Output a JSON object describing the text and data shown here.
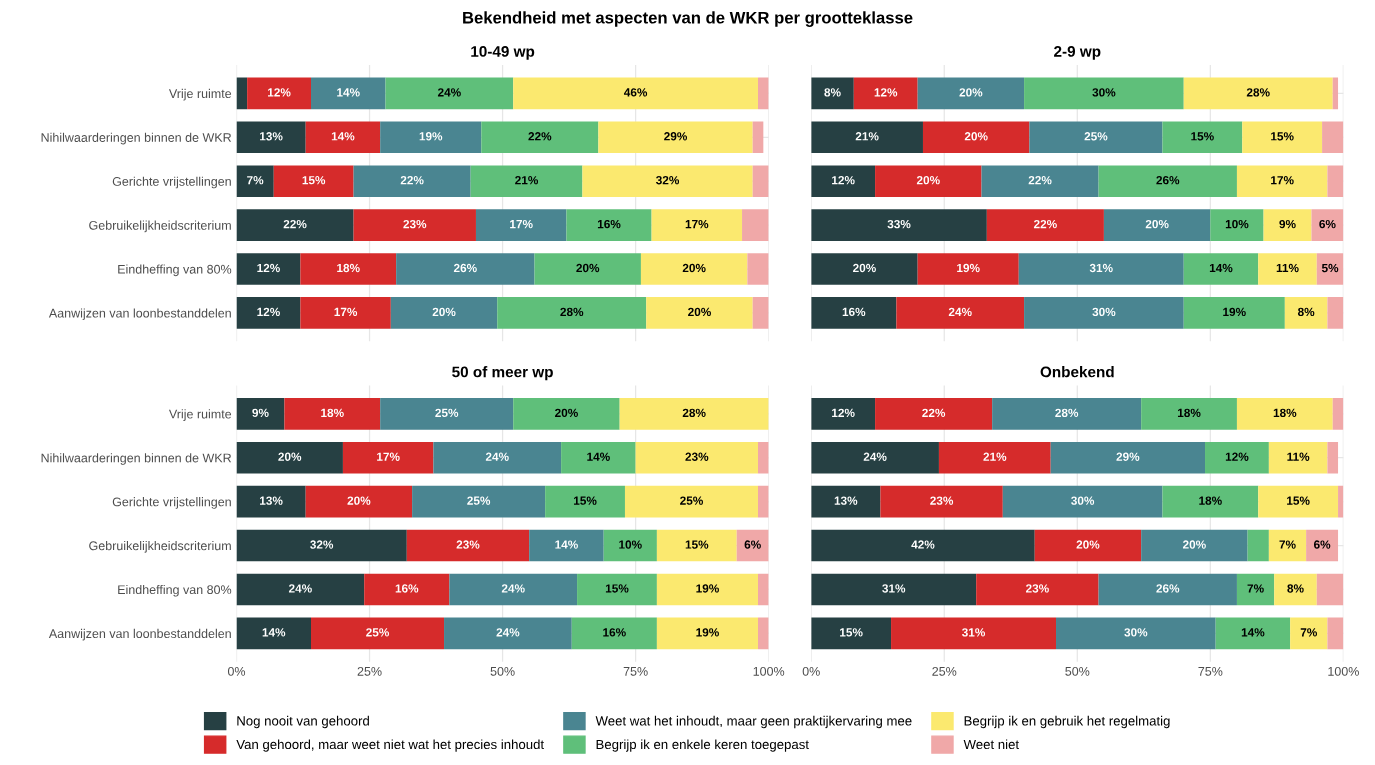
{
  "chart_data": [
    {
      "type": "bar",
      "orientation": "horizontal",
      "stacked": true,
      "title": "10-49 wp",
      "annotations": [
        "Bekendheid met aspecten van de WKR per grootteklasse"
      ],
      "tick_labels": "y",
      "grid": true,
      "legend": "bottom",
      "xlim": [
        0,
        100
      ],
      "xticks": [
        {
          "value": 0,
          "label": null
        },
        {
          "value": 25,
          "label": null
        },
        {
          "value": 50,
          "label": null
        },
        {
          "value": 75,
          "label": null
        },
        {
          "value": 100,
          "label": null
        }
      ],
      "categories": [
        "Vrije ruimte",
        "Nihilwaarderingen binnen de WKR",
        "Gerichte vrijstellingen",
        "Gebruikelijkheidscriterium",
        "Eindheffing van 80%",
        "Aanwijzen van loonbestanddelen"
      ],
      "series": [
        {
          "name": "Nog nooit van gehoord",
          "color": "#264043",
          "values": [
            2,
            13,
            7,
            22,
            12,
            12
          ],
          "value_labels": [
            null,
            "13%",
            "7%",
            "22%",
            "12%",
            "12%"
          ]
        },
        {
          "name": "Van gehoord, maar weet niet wat het precies inhoudt",
          "color": "#d62b2b",
          "values": [
            12,
            14,
            15,
            23,
            18,
            17
          ],
          "value_labels": [
            "12%",
            "14%",
            "15%",
            "23%",
            "18%",
            "17%"
          ]
        },
        {
          "name": "Weet wat het inhoudt, maar geen praktijkervaring mee",
          "color": "#4a8591",
          "values": [
            14,
            19,
            22,
            17,
            26,
            20
          ],
          "value_labels": [
            "14%",
            "19%",
            "22%",
            "17%",
            "26%",
            "20%"
          ]
        },
        {
          "name": "Begrijp ik en enkele keren toegepast",
          "color": "#5fbf7a",
          "values": [
            24,
            22,
            21,
            16,
            20,
            28
          ],
          "value_labels": [
            "24%",
            "22%",
            "21%",
            "16%",
            "20%",
            "28%"
          ]
        },
        {
          "name": "Begrijp ik en gebruik het regelmatig",
          "color": "#fbe96f",
          "values": [
            46,
            29,
            32,
            17,
            20,
            20
          ],
          "value_labels": [
            "46%",
            "29%",
            "32%",
            "17%",
            "20%",
            "20%"
          ]
        },
        {
          "name": "Weet niet",
          "color": "#f0a8a8",
          "values": [
            2,
            2,
            3,
            5,
            4,
            3
          ],
          "value_labels": [
            null,
            null,
            null,
            null,
            null,
            null
          ]
        }
      ]
    },
    {
      "type": "bar",
      "orientation": "horizontal",
      "stacked": true,
      "title": "2-9 wp",
      "tick_labels": false,
      "grid": true,
      "xlim": [
        0,
        100
      ],
      "xticks": [
        {
          "value": 0,
          "label": null
        },
        {
          "value": 25,
          "label": null
        },
        {
          "value": 50,
          "label": null
        },
        {
          "value": 75,
          "label": null
        },
        {
          "value": 100,
          "label": null
        }
      ],
      "categories": [
        null,
        null,
        null,
        null,
        null,
        null
      ],
      "series": [
        {
          "color": "#264043",
          "values": [
            8,
            21,
            12,
            33,
            20,
            16
          ],
          "value_labels": [
            "8%",
            "21%",
            "12%",
            "33%",
            "20%",
            "16%"
          ]
        },
        {
          "color": "#d62b2b",
          "values": [
            12,
            20,
            20,
            22,
            19,
            24
          ],
          "value_labels": [
            "12%",
            "20%",
            "20%",
            "22%",
            "19%",
            "24%"
          ]
        },
        {
          "color": "#4a8591",
          "values": [
            20,
            25,
            22,
            20,
            31,
            30
          ],
          "value_labels": [
            "20%",
            "25%",
            "22%",
            "20%",
            "31%",
            "30%"
          ]
        },
        {
          "color": "#5fbf7a",
          "values": [
            30,
            15,
            26,
            10,
            14,
            19
          ],
          "value_labels": [
            "30%",
            "15%",
            "26%",
            "10%",
            "14%",
            "19%"
          ]
        },
        {
          "color": "#fbe96f",
          "values": [
            28,
            15,
            17,
            9,
            11,
            8
          ],
          "value_labels": [
            "28%",
            "15%",
            "17%",
            "9%",
            "11%",
            "8%"
          ]
        },
        {
          "color": "#f0a8a8",
          "values": [
            1,
            4,
            3,
            6,
            5,
            3
          ],
          "value_labels": [
            null,
            null,
            null,
            "6%",
            "5%",
            null
          ]
        }
      ]
    },
    {
      "type": "bar",
      "orientation": "horizontal",
      "stacked": true,
      "title": "50 of meer wp",
      "grid": true,
      "xlim": [
        0,
        100
      ],
      "xticks": [
        {
          "value": 0,
          "label": "0%"
        },
        {
          "value": 25,
          "label": "25%"
        },
        {
          "value": 50,
          "label": "50%"
        },
        {
          "value": 75,
          "label": "75%"
        },
        {
          "value": 100,
          "label": "100%"
        }
      ],
      "categories": [
        "Vrije ruimte",
        "Nihilwaarderingen binnen de WKR",
        "Gerichte vrijstellingen",
        "Gebruikelijkheidscriterium",
        "Eindheffing van 80%",
        "Aanwijzen van loonbestanddelen"
      ],
      "series": [
        {
          "color": "#264043",
          "values": [
            9,
            20,
            13,
            32,
            24,
            14
          ],
          "value_labels": [
            "9%",
            "20%",
            "13%",
            "32%",
            "24%",
            "14%"
          ]
        },
        {
          "color": "#d62b2b",
          "values": [
            18,
            17,
            20,
            23,
            16,
            25
          ],
          "value_labels": [
            "18%",
            "17%",
            "20%",
            "23%",
            "16%",
            "25%"
          ]
        },
        {
          "color": "#4a8591",
          "values": [
            25,
            24,
            25,
            14,
            24,
            24
          ],
          "value_labels": [
            "25%",
            "24%",
            "25%",
            "14%",
            "24%",
            "24%"
          ]
        },
        {
          "color": "#5fbf7a",
          "values": [
            20,
            14,
            15,
            10,
            15,
            16
          ],
          "value_labels": [
            "20%",
            "14%",
            "15%",
            "10%",
            "15%",
            "16%"
          ]
        },
        {
          "color": "#fbe96f",
          "values": [
            28,
            23,
            25,
            15,
            19,
            19
          ],
          "value_labels": [
            "28%",
            "23%",
            "25%",
            "15%",
            "19%",
            "19%"
          ]
        },
        {
          "color": "#f0a8a8",
          "values": [
            null,
            2,
            2,
            6,
            2,
            2
          ],
          "value_labels": [
            null,
            null,
            null,
            "6%",
            null,
            null
          ]
        }
      ]
    },
    {
      "type": "bar",
      "orientation": "horizontal",
      "stacked": true,
      "title": "Onbekend",
      "tick_labels": "x",
      "grid": true,
      "xlim": [
        0,
        100
      ],
      "xticks": [
        {
          "value": 0,
          "label": "0%"
        },
        {
          "value": 25,
          "label": "25%"
        },
        {
          "value": 50,
          "label": "50%"
        },
        {
          "value": 75,
          "label": "75%"
        },
        {
          "value": 100,
          "label": "100%"
        }
      ],
      "categories": [
        null,
        null,
        null,
        null,
        null,
        null
      ],
      "series": [
        {
          "color": "#264043",
          "values": [
            12,
            24,
            13,
            42,
            31,
            15
          ],
          "value_labels": [
            "12%",
            "24%",
            "13%",
            "42%",
            "31%",
            "15%"
          ]
        },
        {
          "color": "#d62b2b",
          "values": [
            22,
            21,
            23,
            20,
            23,
            31
          ],
          "value_labels": [
            "22%",
            "21%",
            "23%",
            "20%",
            "23%",
            "31%"
          ]
        },
        {
          "color": "#4a8591",
          "values": [
            28,
            29,
            30,
            20,
            26,
            30
          ],
          "value_labels": [
            "28%",
            "29%",
            "30%",
            "20%",
            "26%",
            "30%"
          ]
        },
        {
          "color": "#5fbf7a",
          "values": [
            18,
            12,
            18,
            4,
            7,
            14
          ],
          "value_labels": [
            "18%",
            "12%",
            "18%",
            null,
            "7%",
            "14%"
          ]
        },
        {
          "color": "#fbe96f",
          "values": [
            18,
            11,
            15,
            7,
            8,
            7
          ],
          "value_labels": [
            "18%",
            "11%",
            "15%",
            "7%",
            "8%",
            "7%"
          ]
        },
        {
          "color": "#f0a8a8",
          "values": [
            2,
            2,
            1,
            6,
            5,
            3
          ],
          "value_labels": [
            null,
            null,
            null,
            "6%",
            null,
            null
          ]
        }
      ]
    }
  ]
}
